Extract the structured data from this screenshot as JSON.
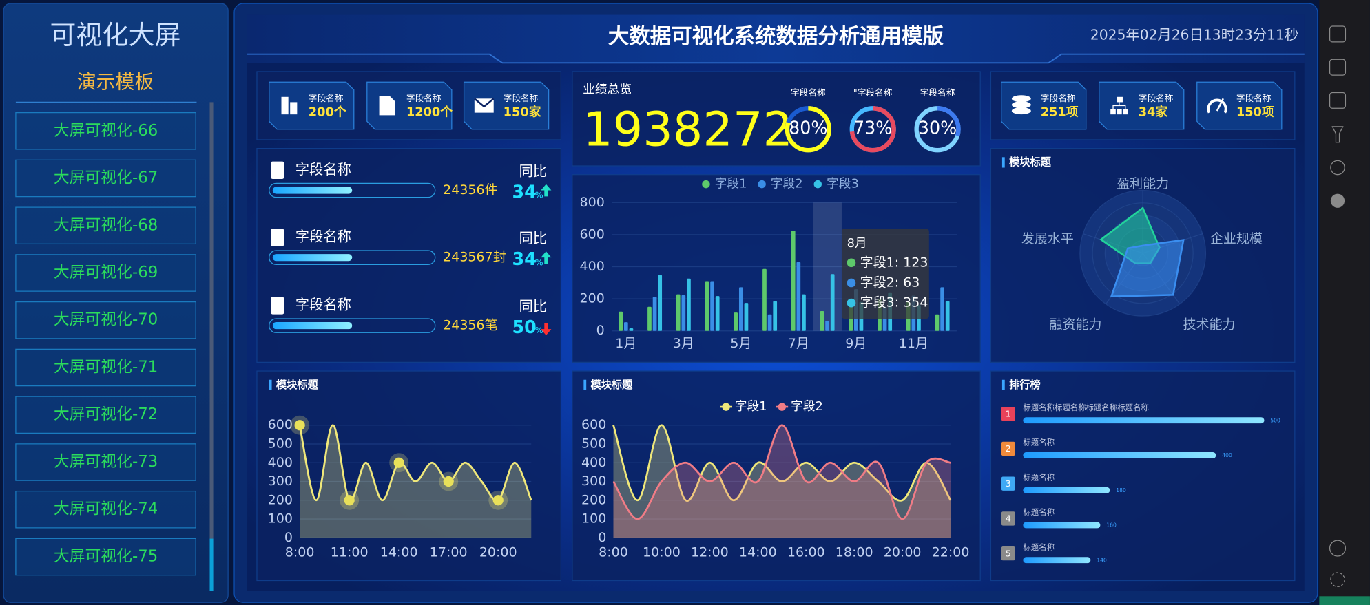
{
  "sidebar": {
    "title": "可视化大屏",
    "subtitle": "演示模板",
    "items": [
      "大屏可视化-66",
      "大屏可视化-67",
      "大屏可视化-68",
      "大屏可视化-69",
      "大屏可视化-70",
      "大屏可视化-71",
      "大屏可视化-72",
      "大屏可视化-73",
      "大屏可视化-74",
      "大屏可视化-75"
    ]
  },
  "header": {
    "title": "大数据可视化系统数据分析通用模版",
    "datetime": "2025年02月26日13时23分11秒"
  },
  "stats_left": [
    {
      "label": "字段名称",
      "value": "200个"
    },
    {
      "label": "字段名称",
      "value": "1200个"
    },
    {
      "label": "字段名称",
      "value": "150家"
    }
  ],
  "stats_right": [
    {
      "label": "字段名称",
      "value": "251项"
    },
    {
      "label": "字段名称",
      "value": "34家"
    },
    {
      "label": "字段名称",
      "value": "150项"
    }
  ],
  "list": [
    {
      "label": "字段名称",
      "amount": "24356件",
      "progress": 50,
      "yoy_label": "同比",
      "yoy_value": "34",
      "yoy_unit": "%",
      "trend": "up"
    },
    {
      "label": "字段名称",
      "amount": "243567封",
      "progress": 50,
      "yoy_label": "同比",
      "yoy_value": "34",
      "yoy_unit": "%",
      "trend": "up"
    },
    {
      "label": "字段名称",
      "amount": "24356笔",
      "progress": 50,
      "yoy_label": "同比",
      "yoy_value": "50",
      "yoy_unit": "%",
      "trend": "down"
    }
  ],
  "overview": {
    "title": "业绩总览",
    "total": "1938272"
  },
  "chart_data": [
    {
      "type": "gauge",
      "categories": [
        "字段名称",
        "\"字段名称",
        "字段名称"
      ],
      "values": [
        80,
        73,
        30
      ],
      "value_labels": [
        "80%",
        "73%",
        "30%"
      ],
      "colors": [
        "#ffff1a",
        "#e84a5f",
        "#3d7af0"
      ],
      "track_colors": [
        "#1a5bd0",
        "#47b8ff",
        "#7fd3ff"
      ],
      "ylim": [
        0,
        100
      ]
    },
    {
      "type": "bar",
      "legend": "top",
      "categories": [
        "1月",
        null,
        "3月",
        null,
        "5月",
        null,
        "7月",
        null,
        "9月",
        null,
        "11月",
        null
      ],
      "series": [
        {
          "name": "字段1",
          "color": "#5ec96b",
          "values": [
            120,
            150,
            228,
            310,
            114,
            386,
            625,
            123,
            160,
            200,
            180,
            103
          ]
        },
        {
          "name": "字段2",
          "color": "#3a8ee6",
          "values": [
            54,
            212,
            223,
            310,
            272,
            103,
            429,
            63,
            260,
            150,
            220,
            272
          ]
        },
        {
          "name": "字段3",
          "color": "#36c2e6",
          "values": [
            16,
            348,
            326,
            217,
            174,
            185,
            228,
            354,
            180,
            240,
            160,
            185
          ]
        }
      ],
      "ylim": [
        0,
        800
      ],
      "yticks": [
        0,
        200,
        400,
        600,
        800
      ],
      "grid": true,
      "tooltip": {
        "category_index": 7,
        "title": "8月",
        "rows": [
          "字段1: 123",
          "字段2: 63",
          "字段3: 354"
        ]
      }
    },
    {
      "type": "radar",
      "title": "模块标题",
      "indicators": [
        "盈利能力",
        "企业规模",
        "技术能力",
        "融资能力",
        "发展水平"
      ],
      "rlim": [
        0,
        100
      ],
      "series": [
        {
          "color": "#22d39b",
          "values": [
            72,
            28,
            20,
            20,
            70
          ]
        },
        {
          "color": "#3a8ef0",
          "values": [
            12,
            68,
            82,
            85,
            25
          ]
        }
      ]
    },
    {
      "type": "line",
      "title": "模块标题",
      "categories": [
        "8:00",
        null,
        null,
        "11:00",
        null,
        null,
        "14:00",
        null,
        null,
        "17:00",
        null,
        null,
        "20:00",
        null,
        null
      ],
      "series": [
        {
          "color": "#efe77a",
          "values": [
            600,
            200,
            600,
            200,
            400,
            200,
            400,
            300,
            400,
            300,
            400,
            300,
            200,
            400,
            200
          ]
        }
      ],
      "ylim": [
        0,
        600
      ],
      "yticks": [
        0,
        100,
        200,
        300,
        400,
        500,
        600
      ],
      "grid": true,
      "area": true,
      "markers": true
    },
    {
      "type": "line",
      "title": "模块标题",
      "legend": "top",
      "categories": [
        "8:00",
        null,
        "10:00",
        null,
        "12:00",
        null,
        "14:00",
        null,
        "16:00",
        null,
        "18:00",
        null,
        "20:00",
        null,
        "22:00"
      ],
      "series": [
        {
          "name": "字段1",
          "color": "#efe77a",
          "values": [
            600,
            200,
            600,
            200,
            400,
            200,
            400,
            300,
            400,
            300,
            400,
            300,
            200,
            400,
            200
          ]
        },
        {
          "name": "字段2",
          "color": "#f07c86",
          "values": [
            300,
            100,
            300,
            400,
            300,
            400,
            300,
            600,
            300,
            400,
            300,
            400,
            100,
            400,
            400
          ]
        }
      ],
      "ylim": [
        0,
        600
      ],
      "yticks": [
        0,
        100,
        200,
        300,
        400,
        500,
        600
      ],
      "grid": true,
      "area": true,
      "markers": false
    },
    {
      "type": "hbar",
      "title": "排行榜",
      "categories": [
        "标题名称标题名称标题名称标题名称",
        "标题名称",
        "标题名称",
        "标题名称",
        "标题名称"
      ],
      "values": [
        500,
        400,
        180,
        160,
        140
      ],
      "xlim": [
        0,
        500
      ],
      "ranks": [
        1,
        2,
        3,
        4,
        5
      ],
      "rank_colors": [
        "#e8425a",
        "#f08a3c",
        "#3fa9f5",
        "#8a8a8a",
        "#8a8a8a"
      ]
    }
  ]
}
